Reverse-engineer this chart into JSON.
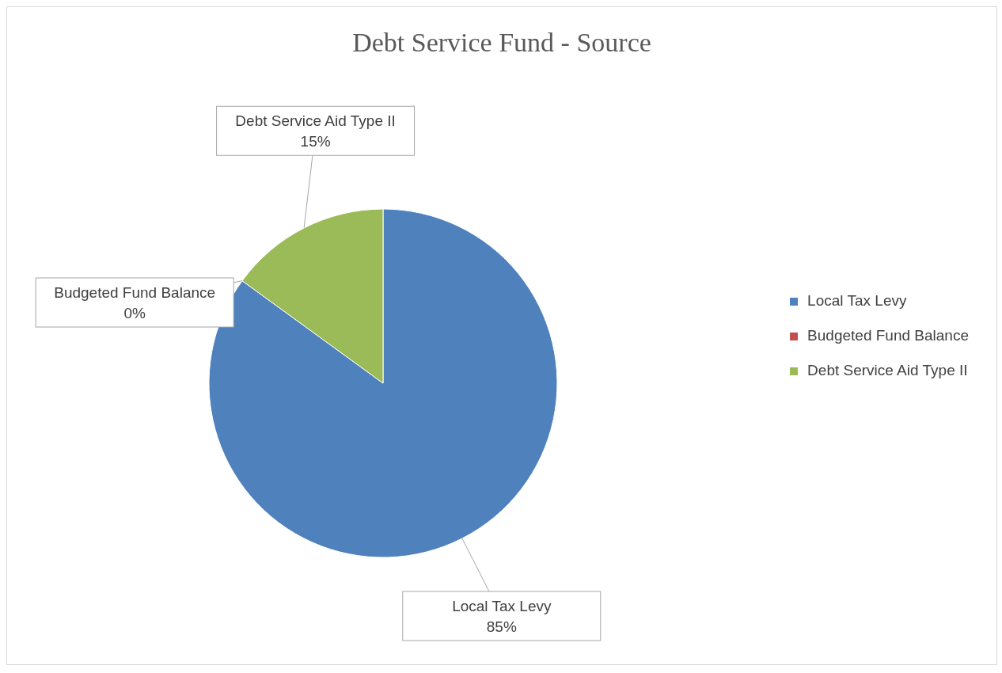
{
  "chart_data": {
    "type": "pie",
    "title": "Debt Service Fund - Source",
    "categories": [
      "Local Tax Levy",
      "Budgeted Fund Balance",
      "Debt Service Aid Type II"
    ],
    "values": [
      85,
      0,
      15
    ],
    "colors": [
      "#4f81bd",
      "#c0504d",
      "#9bbb59"
    ],
    "value_labels": [
      "85%",
      "0%",
      "15%"
    ],
    "legend": "right"
  }
}
